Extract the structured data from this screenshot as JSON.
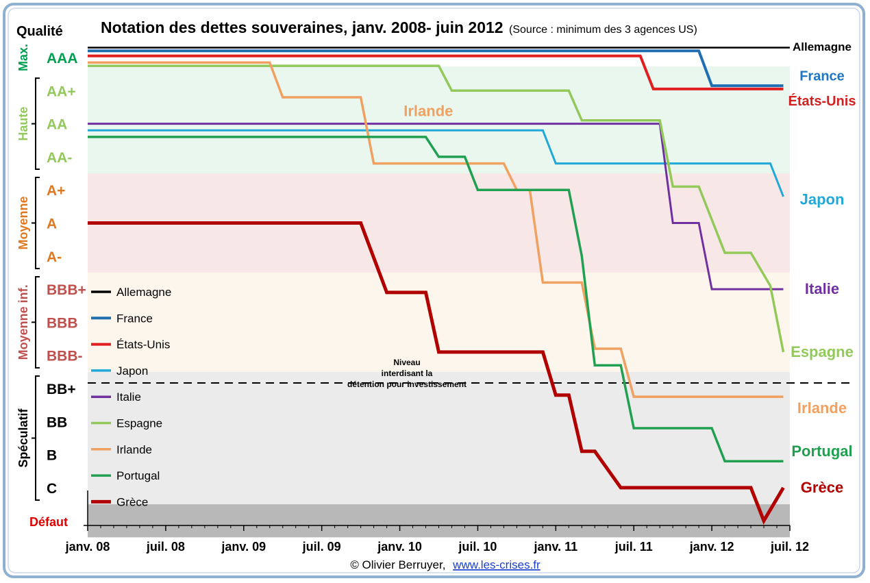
{
  "header": {
    "title": "Notation des dettes souveraines, janv. 2008- juin 2012",
    "subtitle": "(Source : minimum des 3 agences US)",
    "quality_header": "Qualité",
    "credit": "© Olivier Berruyer,",
    "credit_link": "www.les-crises.fr"
  },
  "chart_data": {
    "type": "line",
    "title": "Notation des dettes souveraines, janv. 2008- juin 2012",
    "subtitle": "(Source : minimum des 3 agences US)",
    "xlabel": "",
    "ylabel": "Qualité",
    "x_ticks": [
      {
        "label": "janv. 08",
        "t": 0
      },
      {
        "label": "juil. 08",
        "t": 6
      },
      {
        "label": "janv. 09",
        "t": 12
      },
      {
        "label": "juil. 09",
        "t": 18
      },
      {
        "label": "janv. 10",
        "t": 24
      },
      {
        "label": "juil. 10",
        "t": 30
      },
      {
        "label": "janv. 11",
        "t": 36
      },
      {
        "label": "juil. 11",
        "t": 42
      },
      {
        "label": "janv. 12",
        "t": 48
      },
      {
        "label": "juil. 12",
        "t": 54
      }
    ],
    "x_unit": "months since janv. 08",
    "xlim": [
      0,
      54
    ],
    "y_levels": [
      {
        "label": "AAA",
        "v": 0,
        "color": "#00A050"
      },
      {
        "label": "AA+",
        "v": 1,
        "color": "#92C95A"
      },
      {
        "label": "AA",
        "v": 2,
        "color": "#92C95A"
      },
      {
        "label": "AA-",
        "v": 3,
        "color": "#92C95A"
      },
      {
        "label": "A+",
        "v": 4,
        "color": "#E07820"
      },
      {
        "label": "A",
        "v": 5,
        "color": "#E07820"
      },
      {
        "label": "A-",
        "v": 6,
        "color": "#E07820"
      },
      {
        "label": "BBB+",
        "v": 7,
        "color": "#C0504D"
      },
      {
        "label": "BBB",
        "v": 8,
        "color": "#C0504D"
      },
      {
        "label": "BBB-",
        "v": 9,
        "color": "#C0504D"
      },
      {
        "label": "BB+",
        "v": 10,
        "color": "#000000"
      },
      {
        "label": "BB",
        "v": 11,
        "color": "#000000"
      },
      {
        "label": "B",
        "v": 12,
        "color": "#000000"
      },
      {
        "label": "C",
        "v": 13,
        "color": "#000000"
      },
      {
        "label": "Défaut",
        "v": 14,
        "color": "#E00000"
      }
    ],
    "zones": [
      {
        "name": "Max.",
        "from": -0.5,
        "to": 0.5,
        "color": "#00A050",
        "bg": "#ffffff"
      },
      {
        "name": "Haute",
        "from": 0.5,
        "to": 3.5,
        "color": "#92C95A",
        "bg": "#EAF7EE"
      },
      {
        "name": "Moyenne",
        "from": 3.5,
        "to": 6.5,
        "color": "#E07820",
        "bg": "#F8E7E7"
      },
      {
        "name": "Moyenne inf.",
        "from": 6.5,
        "to": 9.5,
        "color": "#C0504D",
        "bg": "#FDF6EC"
      },
      {
        "name": "Spéculatif",
        "from": 9.5,
        "to": 13.5,
        "color": "#000000",
        "bg": "#EBEBEB"
      },
      {
        "name": "",
        "from": 13.5,
        "to": 14.5,
        "color": "#000000",
        "bg": "#B8B8B8"
      }
    ],
    "threshold": {
      "level": 9.8,
      "label": "Niveau interdisant la détention pour investissement"
    },
    "annotations": [
      {
        "text": "Irlande",
        "t": 24.3,
        "v": 1.6,
        "color": "#F0A060"
      }
    ],
    "series": [
      {
        "name": "Allemagne",
        "label": "Allemagne",
        "color": "#000000",
        "width": 2.5,
        "label_color": "#000000",
        "label_v": -0.35,
        "label_size": 17,
        "points": [
          [
            0,
            -0.3
          ],
          [
            54,
            -0.3
          ]
        ]
      },
      {
        "name": "France",
        "label": "France",
        "color": "#1F6FB2",
        "width": 4,
        "label_color": "#1F77C4",
        "label_v": 0.55,
        "label_size": 20,
        "points": [
          [
            0,
            -0.2
          ],
          [
            47,
            -0.2
          ],
          [
            48,
            0.85
          ],
          [
            53.5,
            0.85
          ]
        ]
      },
      {
        "name": "États-Unis",
        "label": "États-Unis",
        "color": "#E02020",
        "width": 4,
        "label_color": "#D02020",
        "label_v": 1.3,
        "label_size": 20,
        "points": [
          [
            0,
            -0.05
          ],
          [
            42.5,
            -0.05
          ],
          [
            43.5,
            0.95
          ],
          [
            53.5,
            0.95
          ]
        ]
      },
      {
        "name": "Japon",
        "label": "Japon",
        "color": "#20A8D8",
        "width": 3,
        "label_color": "#20A8D8",
        "label_v": 4.3,
        "label_size": 22,
        "points": [
          [
            0,
            2.2
          ],
          [
            35,
            2.2
          ],
          [
            36,
            3.2
          ],
          [
            52.5,
            3.2
          ],
          [
            53.5,
            4.2
          ]
        ]
      },
      {
        "name": "Italie",
        "label": "Italie",
        "color": "#7030A0",
        "width": 3,
        "label_color": "#7030A0",
        "label_v": 7.0,
        "label_size": 22,
        "points": [
          [
            0,
            2.0
          ],
          [
            44,
            2.0
          ],
          [
            45,
            5.0
          ],
          [
            47,
            5.0
          ],
          [
            48,
            7.0
          ],
          [
            53.5,
            7.0
          ]
        ]
      },
      {
        "name": "Espagne",
        "label": "Espagne",
        "color": "#92C95A",
        "width": 3.5,
        "label_color": "#92C95A",
        "label_v": 8.9,
        "label_size": 22,
        "points": [
          [
            0,
            0.25
          ],
          [
            27,
            0.25
          ],
          [
            28,
            1.0
          ],
          [
            37,
            1.0
          ],
          [
            38,
            1.9
          ],
          [
            44,
            1.9
          ],
          [
            45,
            3.9
          ],
          [
            47,
            3.9
          ],
          [
            49,
            5.9
          ],
          [
            51,
            5.9
          ],
          [
            52.5,
            6.9
          ],
          [
            53.5,
            8.9
          ]
        ]
      },
      {
        "name": "Irlande",
        "label": "Irlande",
        "color": "#F0A060",
        "width": 3.5,
        "label_color": "#F0A060",
        "label_v": 10.6,
        "label_size": 22,
        "points": [
          [
            0,
            0.15
          ],
          [
            14,
            0.15
          ],
          [
            15,
            1.2
          ],
          [
            21,
            1.2
          ],
          [
            22,
            3.2
          ],
          [
            32,
            3.2
          ],
          [
            33,
            4.0
          ],
          [
            34,
            4.0
          ],
          [
            35,
            6.8
          ],
          [
            38,
            6.8
          ],
          [
            39,
            8.8
          ],
          [
            41,
            8.8
          ],
          [
            42,
            10.25
          ],
          [
            53.5,
            10.25
          ]
        ]
      },
      {
        "name": "Portugal",
        "label": "Portugal",
        "color": "#20A050",
        "width": 3.5,
        "label_color": "#20A050",
        "label_v": 11.9,
        "label_size": 22,
        "points": [
          [
            0,
            2.4
          ],
          [
            26,
            2.4
          ],
          [
            27,
            3.0
          ],
          [
            29,
            3.0
          ],
          [
            30,
            4.0
          ],
          [
            37,
            4.0
          ],
          [
            38,
            6.0
          ],
          [
            39,
            9.3
          ],
          [
            41,
            9.3
          ],
          [
            42,
            11.2
          ],
          [
            48,
            11.2
          ],
          [
            49,
            12.2
          ],
          [
            53.5,
            12.2
          ]
        ]
      },
      {
        "name": "Grèce",
        "label": "Grèce",
        "color": "#B00000",
        "width": 5,
        "label_color": "#B00000",
        "label_v": 13.0,
        "label_size": 22,
        "points": [
          [
            0,
            5.0
          ],
          [
            21,
            5.0
          ],
          [
            23,
            7.1
          ],
          [
            26,
            7.1
          ],
          [
            27,
            8.9
          ],
          [
            35,
            8.9
          ],
          [
            36,
            10.2
          ],
          [
            37,
            10.2
          ],
          [
            38,
            11.9
          ],
          [
            39,
            11.9
          ],
          [
            41,
            13.0
          ],
          [
            51,
            13.0
          ],
          [
            52,
            14.0
          ],
          [
            53.5,
            13.0
          ]
        ]
      }
    ],
    "legend": {
      "position": "left",
      "items": [
        "Allemagne",
        "France",
        "États-Unis",
        "Japon",
        "Italie",
        "Espagne",
        "Irlande",
        "Portugal",
        "Grèce"
      ]
    }
  }
}
